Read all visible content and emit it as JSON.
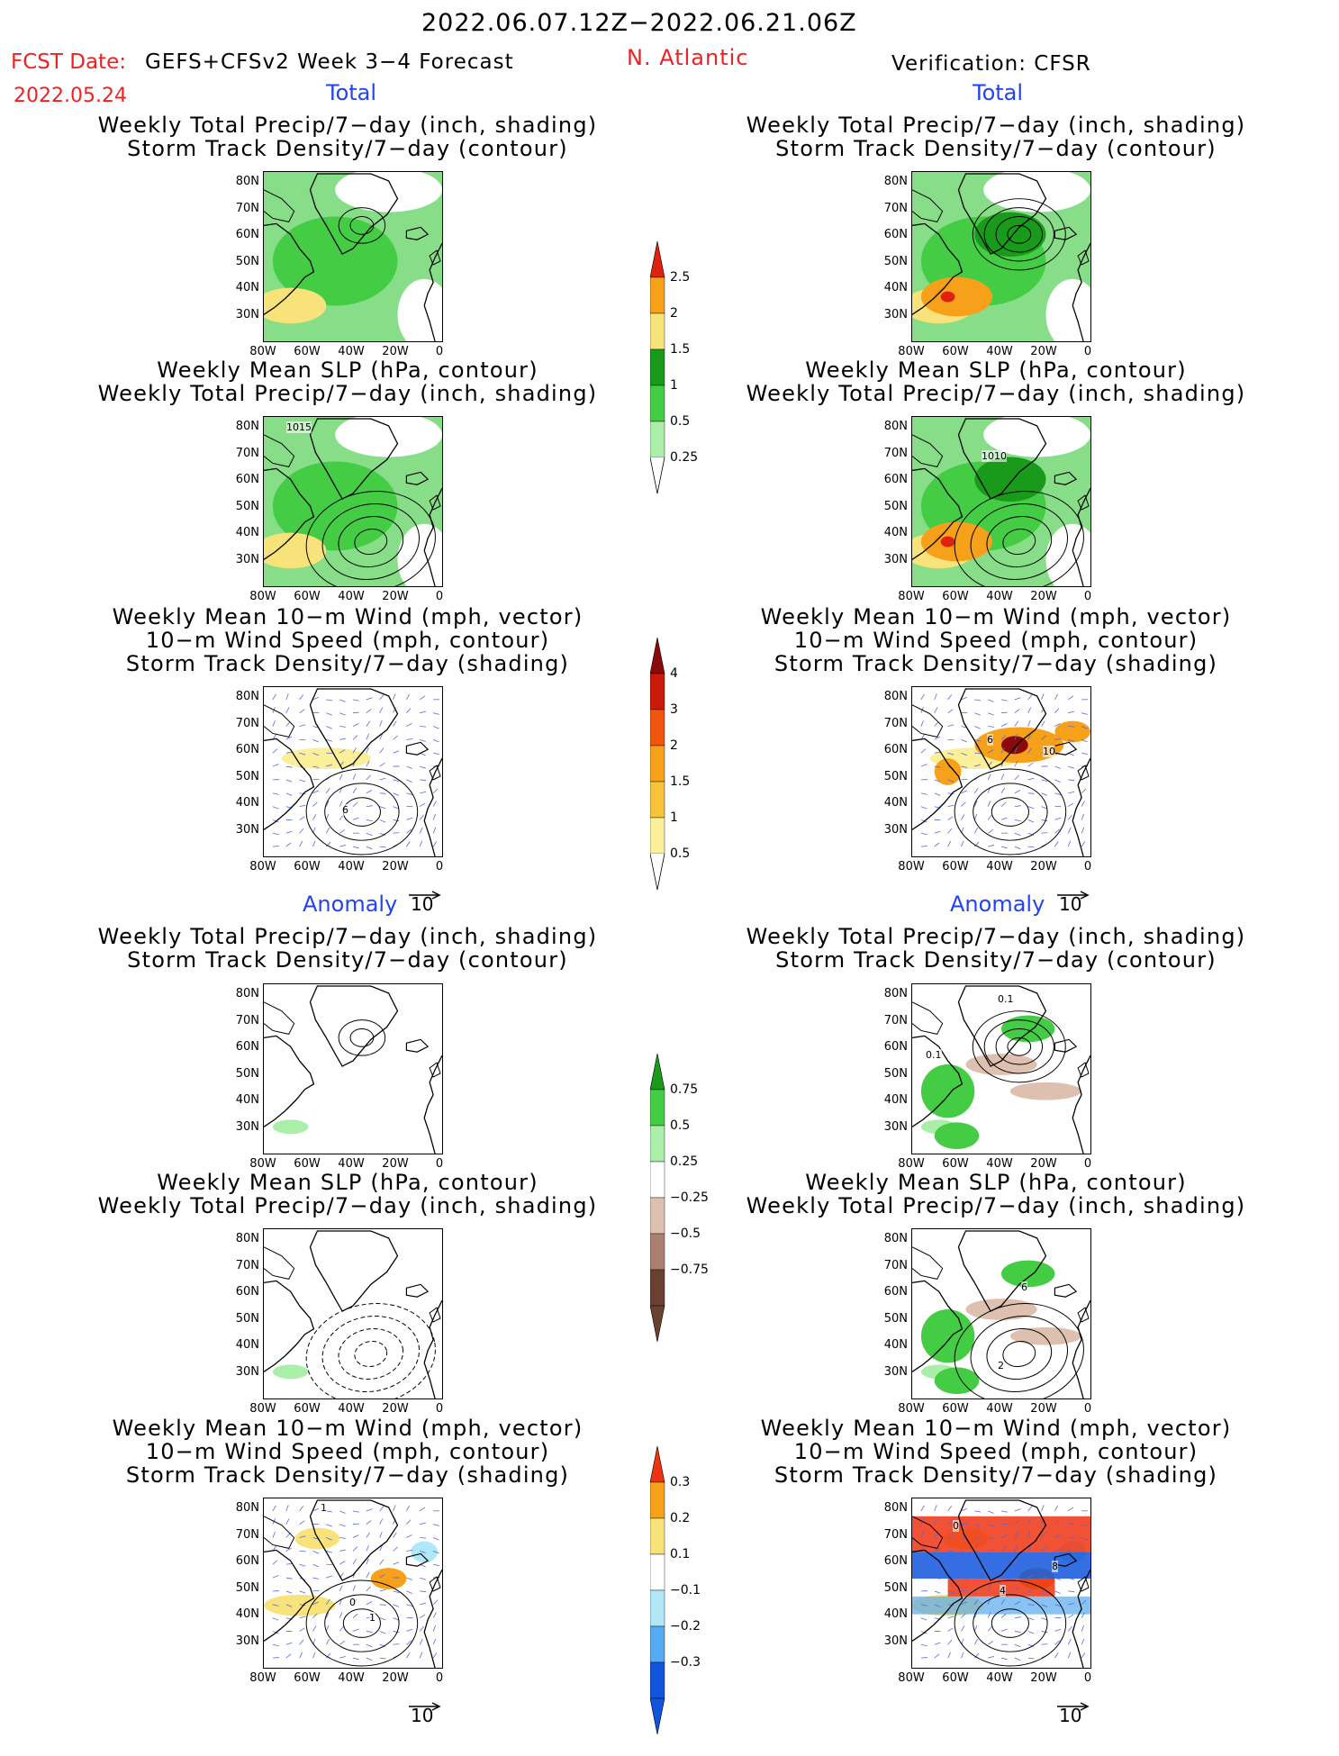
{
  "header": {
    "date_range": "2022.06.07.12Z−2022.06.21.06Z",
    "fcst_label": "FCST Date:",
    "fcst_date": "2022.05.24",
    "model": "GEFS+CFSv2 Week 3−4 Forecast",
    "region": "N. Atlantic",
    "verification": "Verification: CFSR"
  },
  "sections": {
    "total": "Total",
    "anomaly": "Anomaly"
  },
  "titles": {
    "precip_storm": [
      "Weekly Total Precip/7−day (inch, shading)",
      "Storm Track Density/7−day (contour)"
    ],
    "slp_precip": [
      "Weekly Mean SLP (hPa, contour)",
      "Weekly Total Precip/7−day (inch, shading)"
    ],
    "wind": [
      "Weekly Mean 10−m Wind (mph, vector)",
      "10−m Wind Speed (mph, contour)",
      "Storm Track Density/7−day (shading)"
    ]
  },
  "axes": {
    "lat_ticks": [
      "80N",
      "70N",
      "60N",
      "50N",
      "40N",
      "30N"
    ],
    "lon_ticks": [
      "80W",
      "60W",
      "40W",
      "20W",
      "0"
    ]
  },
  "contour_labels": {
    "fcst_slp_total": "1015",
    "obs_slp_total": "1010",
    "fcst_wind_total": "6",
    "obs_wind_total_a": "6",
    "obs_wind_total_b": "10",
    "obs_precip_anom_a": "0.1",
    "obs_precip_anom_b": "0.1",
    "obs_slp_anom_a": "6",
    "obs_slp_anom_b": "2",
    "fcst_wind_anom_a": "1",
    "fcst_wind_anom_b": "0",
    "fcst_wind_anom_c": "1",
    "obs_wind_anom_a": "0",
    "obs_wind_anom_b": "8",
    "obs_wind_anom_c": "4"
  },
  "vector_ref": "10",
  "colorbars": {
    "precip_total": {
      "labels": [
        "2.5",
        "2",
        "1.5",
        "1",
        "0.5",
        "0.25"
      ],
      "colors": [
        "#dd2211",
        "#f7a01a",
        "#f8e27a",
        "#1a9a1a",
        "#44cc44",
        "#aaeeaa"
      ]
    },
    "storm_total": {
      "labels": [
        "4",
        "3",
        "2",
        "1.5",
        "1",
        "0.5"
      ],
      "colors": [
        "#8a0a0a",
        "#cc1a0a",
        "#f05510",
        "#f7a01a",
        "#f8c23a",
        "#fbef9a"
      ]
    },
    "precip_anom": {
      "labels": [
        "0.75",
        "0.5",
        "0.25",
        "−0.25",
        "−0.5",
        "−0.75"
      ],
      "colors": [
        "#1a9a1a",
        "#44cc44",
        "#aaeeaa",
        "#ffffff",
        "#ddc0b0",
        "#aa8070",
        "#6a4030"
      ]
    },
    "storm_anom": {
      "labels": [
        "0.3",
        "0.2",
        "0.1",
        "−0.1",
        "−0.2",
        "−0.3"
      ],
      "colors": [
        "#ee3311",
        "#f7a01a",
        "#f8e27a",
        "#ffffff",
        "#b0e8f8",
        "#55aaf0",
        "#1155dd"
      ]
    }
  }
}
